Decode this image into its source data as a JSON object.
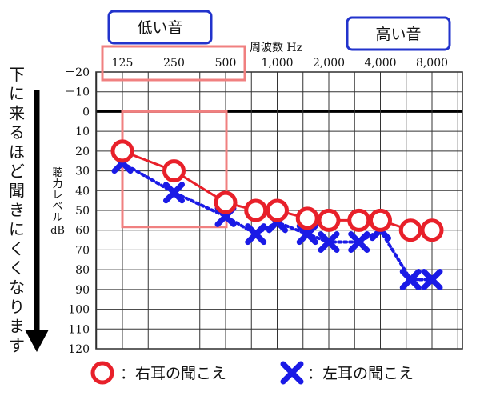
{
  "chart_data": {
    "type": "line",
    "x_axis_label": "周波数 Hz",
    "x_ticks": [
      "125",
      "250",
      "500",
      "1,000",
      "2,000",
      "4,000",
      "8,000"
    ],
    "y_axis_label": "聴力レベルdB",
    "y_ticks": [
      "－20",
      "－10",
      "0",
      "10",
      "20",
      "30",
      "40",
      "50",
      "60",
      "70",
      "80",
      "90",
      "100",
      "110",
      "120"
    ],
    "ylim": [
      -20,
      120
    ],
    "y_inverted": true,
    "grid": true,
    "x_labels_bottom": [
      "低い音",
      "高い音"
    ],
    "side_label": "下に来るほど聞きにくくなります",
    "series": [
      {
        "name": "右耳の聞こえ",
        "marker": "circle",
        "color": "#e8202a",
        "line_style": "solid",
        "points": [
          {
            "x": "125",
            "y": 20
          },
          {
            "x": "250",
            "y": 30
          },
          {
            "x": "500",
            "y": 46
          },
          {
            "x": "750",
            "y": 50
          },
          {
            "x": "1,000",
            "y": 50
          },
          {
            "x": "1,500",
            "y": 54
          },
          {
            "x": "2,000",
            "y": 55
          },
          {
            "x": "3,000",
            "y": 55
          },
          {
            "x": "4,000",
            "y": 55
          },
          {
            "x": "6,000",
            "y": 60
          },
          {
            "x": "8,000",
            "y": 60
          }
        ]
      },
      {
        "name": "左耳の聞こえ",
        "marker": "cross",
        "color": "#1a1ae6",
        "line_style": "dotted",
        "points": [
          {
            "x": "125",
            "y": 26
          },
          {
            "x": "250",
            "y": 41
          },
          {
            "x": "500",
            "y": 53
          },
          {
            "x": "750",
            "y": 62
          },
          {
            "x": "1,000",
            "y": 56
          },
          {
            "x": "1,500",
            "y": 62
          },
          {
            "x": "2,000",
            "y": 66
          },
          {
            "x": "3,000",
            "y": 66
          },
          {
            "x": "4,000",
            "y": 60
          },
          {
            "x": "6,000",
            "y": 85
          },
          {
            "x": "8,000",
            "y": 85
          }
        ]
      }
    ],
    "highlight": {
      "x_range": [
        "125",
        "500"
      ],
      "y_range": [
        0,
        60
      ],
      "color": "#f08080"
    },
    "legend": {
      "placement": "bottom",
      "items": [
        "右耳の聞こえ",
        "左耳の聞こえ"
      ]
    },
    "legend_separator": "："
  }
}
